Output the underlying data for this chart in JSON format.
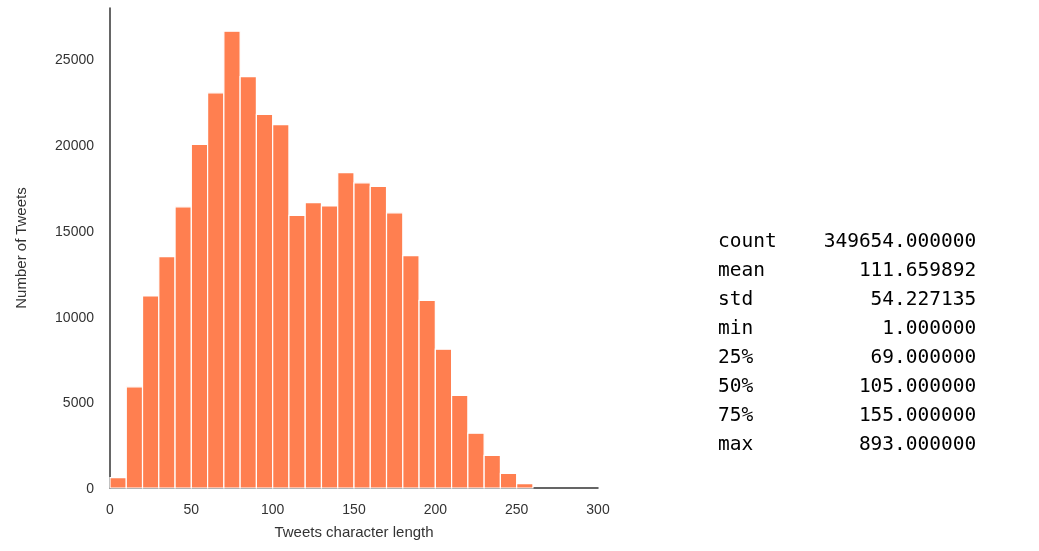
{
  "chart_data": {
    "type": "histogram",
    "xlabel": "Tweets character length",
    "ylabel": "Number of Tweets",
    "bins": [
      0,
      10,
      20,
      30,
      40,
      50,
      60,
      70,
      80,
      90,
      100,
      110,
      120,
      130,
      140,
      150,
      160,
      170,
      180,
      190,
      200,
      210,
      220,
      230,
      240,
      250,
      260
    ],
    "values": [
      600,
      5900,
      11200,
      13500,
      16400,
      20050,
      23050,
      26650,
      24000,
      21800,
      21200,
      15900,
      16650,
      16450,
      18400,
      17800,
      17600,
      16050,
      13550,
      10950,
      8100,
      5400,
      3200,
      1900,
      850,
      250
    ],
    "color": "#ff7f50",
    "xlim": [
      0,
      300
    ],
    "xticks": [
      0,
      50,
      100,
      150,
      200,
      250,
      300
    ],
    "ylim": [
      0,
      28000
    ],
    "yticks": [
      0,
      5000,
      10000,
      15000,
      20000,
      25000
    ],
    "grid": false,
    "annotations": [
      "count    349654.000000",
      "mean        111.659892",
      "std          54.227135",
      "min           1.000000",
      "25%          69.000000",
      "50%         105.000000",
      "75%         155.000000",
      "max         893.000000"
    ]
  }
}
